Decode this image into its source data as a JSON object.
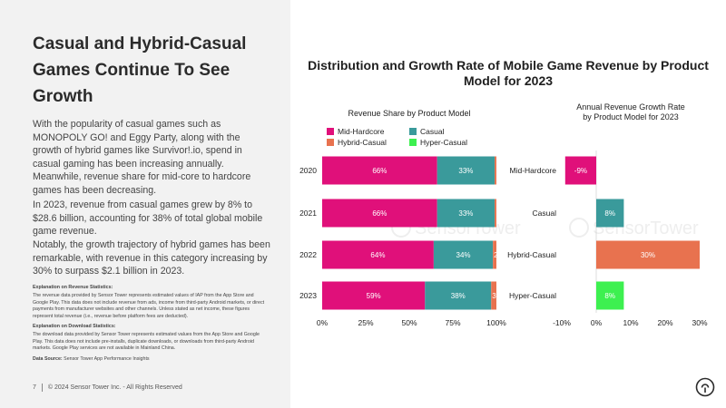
{
  "slide": {
    "title": "Casual and Hybrid-Casual Games Continue To See Growth",
    "paragraphs": [
      "With the popularity of casual games such as MONOPOLY GO! and Eggy Party, along with the growth of hybrid games like Survivor!.io, spend in casual gaming has been increasing annually. Meanwhile, revenue share for mid-core to hardcore games has been decreasing.",
      "In 2023, revenue from casual games grew by 8% to $28.6 billion, accounting for 38% of total global mobile game revenue.",
      "Notably, the growth trajectory of hybrid games has been remarkable, with revenue in this category increasing by 30% to surpass $2.1 billion in 2023."
    ],
    "notes": {
      "revenue_heading": "Explanation on Revenue Statistics:",
      "revenue_body": "The revenue data provided by Sensor Tower represents estimated values of IAP from the App Store and Google Play. This data does not include revenue from ads, income from third-party Android markets, or direct payments from manufacturer websites and other channels. Unless stated as net income, these figures represent total revenue (i.e., revenue before platform fees are deducted).",
      "download_heading": "Explanation on Download Statistics:",
      "download_body": "The download data provided by Sensor Tower represents estimated values from the App Store and Google Play. This data does not include pre-installs, duplicate downloads, or downloads from third-party Android markets. Google Play services are not available in Mainland China.",
      "source_label": "Data Source:",
      "source_text": " Sensor Tower App Performance Insights"
    },
    "footer": {
      "page_number": "7",
      "copyright": "© 2024 Sensor Tower Inc. - All Rights Reserved"
    },
    "watermark": "SensorTower",
    "colors": {
      "left_panel_bg": "#f2f2f2",
      "mid_hardcore": "#e0107a",
      "casual": "#3a9a9b",
      "hybrid_casual": "#e8724f",
      "hyper_casual": "#3df050"
    },
    "icons": [
      "sensor-tower-logo-icon"
    ]
  },
  "chart_data": [
    {
      "type": "bar",
      "orientation": "horizontal",
      "stacked": true,
      "title": "Revenue Share by Product Model",
      "suptitle": "Distribution and Growth Rate of Mobile Game Revenue by Product Model for 2023",
      "categories": [
        "2020",
        "2021",
        "2022",
        "2023"
      ],
      "series": [
        {
          "name": "Mid-Hardcore",
          "color": "#e0107a",
          "values": [
            66,
            66,
            64,
            59
          ],
          "labels": [
            "66%",
            "66%",
            "64%",
            "59%"
          ]
        },
        {
          "name": "Casual",
          "color": "#3a9a9b",
          "values": [
            33,
            33,
            34,
            38
          ],
          "labels": [
            "33%",
            "33%",
            "34%",
            "38%"
          ]
        },
        {
          "name": "Hybrid-Casual",
          "color": "#e8724f",
          "values": [
            1,
            1,
            2,
            3
          ],
          "labels": [
            "",
            "",
            "2",
            "3"
          ]
        },
        {
          "name": "Hyper-Casual",
          "color": "#3df050",
          "values": [
            0,
            0,
            0,
            0
          ],
          "labels": [
            "",
            "",
            "",
            ""
          ]
        }
      ],
      "xlim": [
        0,
        100
      ],
      "xticks": [
        "0%",
        "25%",
        "50%",
        "75%",
        "100%"
      ],
      "legend": "top-left",
      "grid": false
    },
    {
      "type": "bar",
      "orientation": "horizontal",
      "title": "Annual Revenue Growth Rate by Product Model for 2023",
      "categories": [
        "Mid-Hardcore",
        "Casual",
        "Hybrid-Casual",
        "Hyper-Casual"
      ],
      "values": [
        -9,
        8,
        30,
        8
      ],
      "labels": [
        "-9%",
        "8%",
        "30%",
        "8%"
      ],
      "colors": [
        "#e0107a",
        "#3a9a9b",
        "#e8724f",
        "#3df050"
      ],
      "xlim": [
        -10,
        30
      ],
      "xticks": [
        "-10%",
        "0%",
        "10%",
        "20%",
        "30%"
      ],
      "grid": false
    }
  ]
}
